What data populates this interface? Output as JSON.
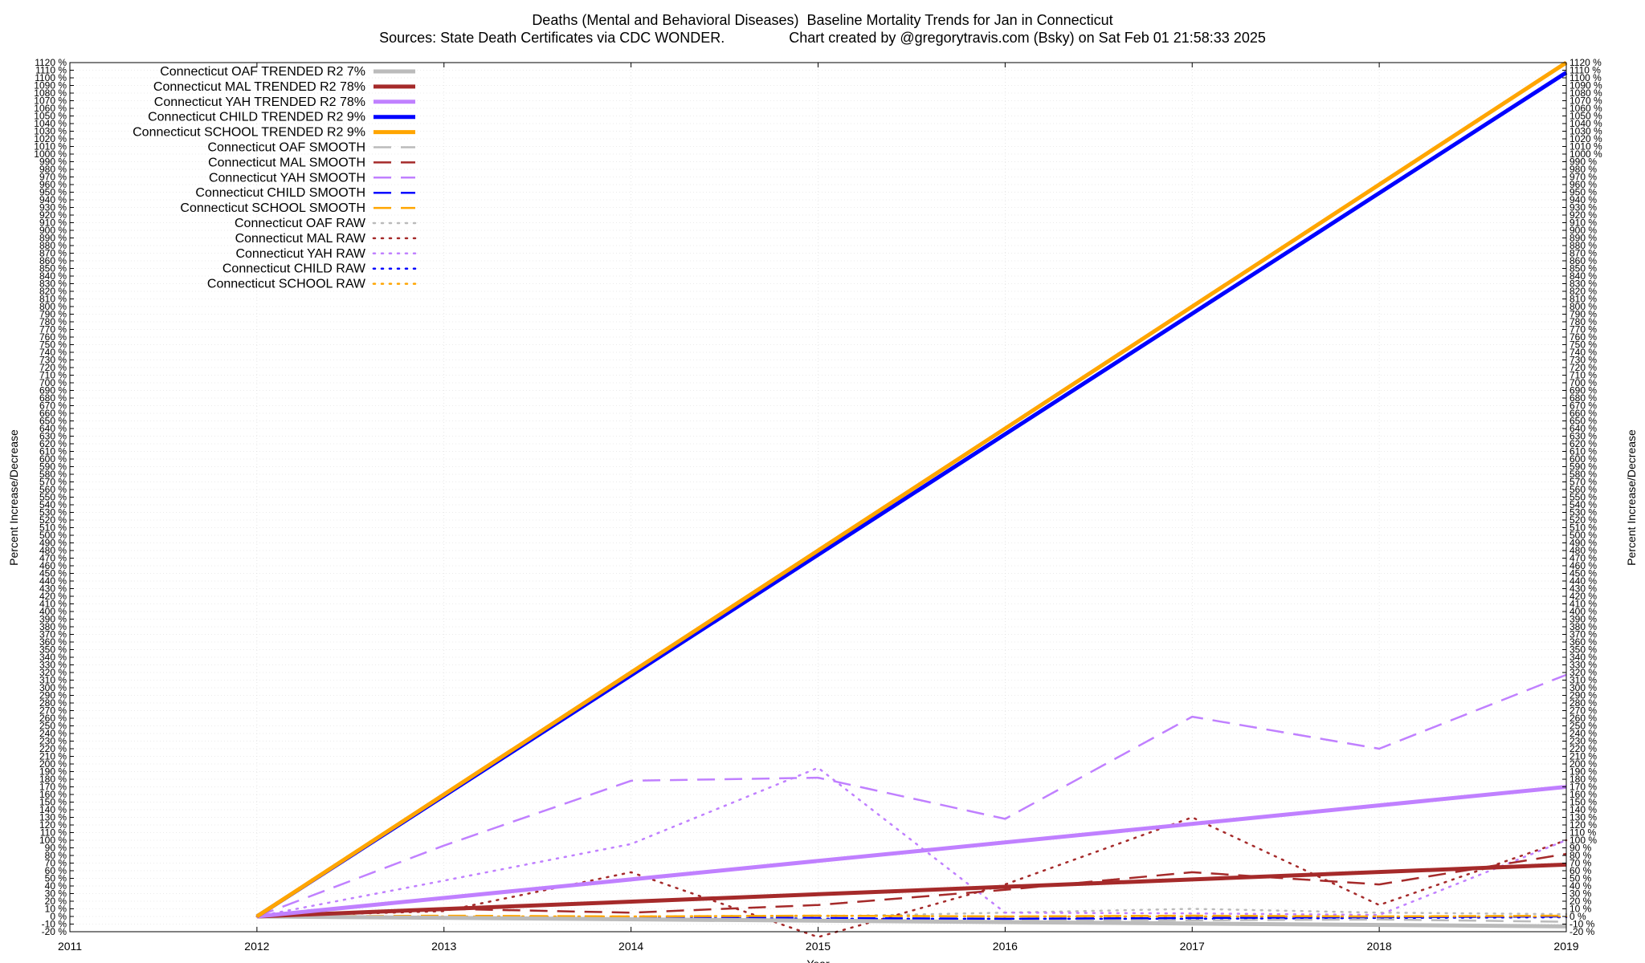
{
  "header": {
    "title": "Deaths (Mental and Behavioral Diseases)  Baseline Mortality Trends for Jan in Connecticut",
    "subtitle": "Sources: State Death Certificates via CDC WONDER.                Chart created by @gregorytravis.com (Bsky) on Sat Feb 01 21:58:33 2025"
  },
  "chart_data": {
    "type": "line",
    "title": "Deaths (Mental and Behavioral Diseases)  Baseline Mortality Trends for Jan in Connecticut",
    "subtitle": "Sources: State Death Certificates via CDC WONDER.                Chart created by @gregorytravis.com (Bsky) on Sat Feb 01 21:58:33 2025",
    "xlabel": "Year",
    "ylabel": "Percent Increase/Decrease",
    "y2label": "Percent Increase/Decrease",
    "xlim": [
      2011,
      2019
    ],
    "ylim": [
      -20,
      1120
    ],
    "x_ticks": [
      "2011",
      "2012",
      "2013",
      "2014",
      "2015",
      "2016",
      "2017",
      "2018",
      "2019"
    ],
    "y_tick_step": 10,
    "y_tick_suffix": " %",
    "grid": true,
    "legend_position": "top-left",
    "series": [
      {
        "name": "Connecticut OAF TRENDED R2   7%",
        "style": "trend",
        "color": "#bbbbbb",
        "x": [
          2012,
          2019
        ],
        "y": [
          0,
          -13
        ]
      },
      {
        "name": "Connecticut MAL TRENDED R2  78%",
        "style": "trend",
        "color": "#a52a2a",
        "x": [
          2012,
          2019
        ],
        "y": [
          0,
          68
        ]
      },
      {
        "name": "Connecticut YAH TRENDED R2  78%",
        "style": "trend",
        "color": "#c080ff",
        "x": [
          2012,
          2019
        ],
        "y": [
          0,
          170
        ]
      },
      {
        "name": "Connecticut CHILD TRENDED R2   9%",
        "style": "trend",
        "color": "#0000ff",
        "x": [
          2012,
          2019
        ],
        "y": [
          0,
          1107
        ]
      },
      {
        "name": "Connecticut SCHOOL TRENDED R2   9%",
        "style": "trend",
        "color": "#ffa500",
        "x": [
          2012,
          2019
        ],
        "y": [
          0,
          1120
        ]
      },
      {
        "name": "Connecticut OAF SMOOTH",
        "style": "smooth",
        "color": "#bbbbbb",
        "x": [
          2012,
          2013,
          2014,
          2015,
          2016,
          2017,
          2018,
          2019
        ],
        "y": [
          0,
          -2,
          -3,
          -2,
          -4,
          -5,
          -4,
          -7
        ]
      },
      {
        "name": "Connecticut MAL SMOOTH",
        "style": "smooth",
        "color": "#a52a2a",
        "x": [
          2012,
          2013,
          2014,
          2015,
          2016,
          2017,
          2018,
          2019
        ],
        "y": [
          0,
          10,
          5,
          15,
          35,
          58,
          42,
          82
        ]
      },
      {
        "name": "Connecticut YAH SMOOTH",
        "style": "smooth",
        "color": "#c080ff",
        "x": [
          2012,
          2013,
          2014,
          2015,
          2016,
          2017,
          2018,
          2019
        ],
        "y": [
          0,
          93,
          178,
          182,
          128,
          262,
          220,
          317
        ]
      },
      {
        "name": "Connecticut CHILD SMOOTH",
        "style": "smooth",
        "color": "#0000ff",
        "x": [
          2012,
          2013,
          2014,
          2015,
          2016,
          2017,
          2018,
          2019
        ],
        "y": [
          0,
          -1,
          -1,
          -2,
          -3,
          -2,
          -1,
          0
        ]
      },
      {
        "name": "Connecticut SCHOOL SMOOTH",
        "style": "smooth",
        "color": "#ffa500",
        "x": [
          2012,
          2013,
          2014,
          2015,
          2016,
          2017,
          2018,
          2019
        ],
        "y": [
          0,
          1,
          0,
          1,
          0,
          1,
          0,
          1
        ]
      },
      {
        "name": "Connecticut OAF RAW",
        "style": "raw",
        "color": "#bbbbbb",
        "x": [
          2012,
          2013,
          2014,
          2015,
          2016,
          2017,
          2018,
          2019
        ],
        "y": [
          0,
          -2,
          -5,
          0,
          5,
          10,
          5,
          3
        ]
      },
      {
        "name": "Connecticut MAL RAW",
        "style": "raw",
        "color": "#a52a2a",
        "x": [
          2012,
          2013,
          2014,
          2015,
          2016,
          2017,
          2018,
          2019
        ],
        "y": [
          0,
          7,
          58,
          -27,
          42,
          130,
          15,
          100
        ]
      },
      {
        "name": "Connecticut YAH RAW",
        "style": "raw",
        "color": "#c080ff",
        "x": [
          2012,
          2013,
          2014,
          2015,
          2016,
          2017,
          2018,
          2019
        ],
        "y": [
          0,
          47,
          95,
          195,
          5,
          4,
          2,
          100
        ]
      },
      {
        "name": "Connecticut CHILD RAW",
        "style": "raw",
        "color": "#0000ff",
        "x": [
          2012,
          2013,
          2014,
          2015,
          2016,
          2017,
          2018,
          2019
        ],
        "y": [
          0,
          -2,
          -2,
          -3,
          -3,
          -3,
          -2,
          -1
        ]
      },
      {
        "name": "Connecticut SCHOOL RAW",
        "style": "raw",
        "color": "#ffa500",
        "x": [
          2012,
          2013,
          2014,
          2015,
          2016,
          2017,
          2018,
          2019
        ],
        "y": [
          0,
          0,
          0,
          1,
          0,
          0,
          0,
          0
        ]
      }
    ]
  }
}
